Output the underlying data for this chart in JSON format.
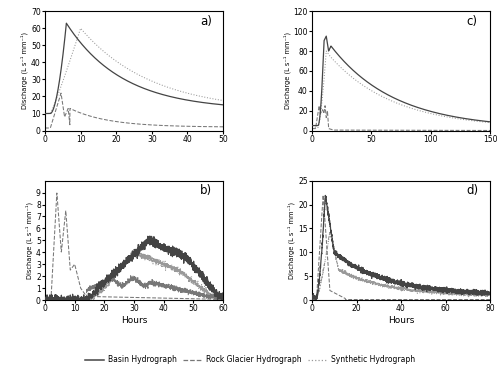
{
  "panels": {
    "a": {
      "label": "a)",
      "xlim": [
        0,
        50
      ],
      "ylim": [
        0,
        70
      ],
      "xticks": [
        0,
        10,
        20,
        30,
        40,
        50
      ],
      "yticks": [
        0,
        10,
        20,
        30,
        40,
        50,
        60,
        70
      ]
    },
    "b": {
      "label": "b)",
      "xlim": [
        0,
        60
      ],
      "ylim": [
        0,
        10
      ],
      "xticks": [
        0,
        10,
        20,
        30,
        40,
        50,
        60
      ],
      "yticks": [
        0,
        1,
        2,
        3,
        4,
        5,
        6,
        7,
        8,
        9
      ]
    },
    "c": {
      "label": "c)",
      "xlim": [
        0,
        150
      ],
      "ylim": [
        0,
        120
      ],
      "xticks": [
        0,
        50,
        100,
        150
      ],
      "yticks": [
        0,
        20,
        40,
        60,
        80,
        100,
        120
      ]
    },
    "d": {
      "label": "d)",
      "xlim": [
        0,
        80
      ],
      "ylim": [
        0,
        25
      ],
      "xticks": [
        0,
        20,
        40,
        60,
        80
      ],
      "yticks": [
        0,
        5,
        10,
        15,
        20,
        25
      ]
    }
  },
  "colors": {
    "basin": "#444444",
    "rock_glacier": "#777777",
    "synthetic": "#999999"
  },
  "ylabel": "Discharge (L s⁻¹ mm⁻¹)",
  "xlabel": "Hours",
  "legend": {
    "basin": "Basin Hydrograph",
    "rock_glacier": "Rock Glacier Hydrograph",
    "synthetic": "Synthetic Hydrograph"
  }
}
